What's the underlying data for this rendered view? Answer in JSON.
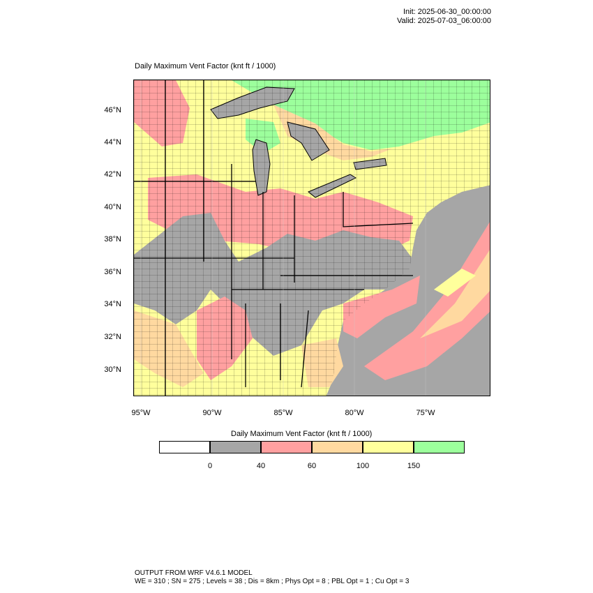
{
  "header": {
    "init": "Init: 2025-06-30_00:00:00",
    "valid": "Valid: 2025-07-03_06:00:00"
  },
  "plot": {
    "title": "Daily Maximum Vent Factor   (knt ft / 1000)"
  },
  "map": {
    "region": "Eastern United States",
    "lat_labels": [
      "46°N",
      "44°N",
      "42°N",
      "40°N",
      "38°N",
      "36°N",
      "34°N",
      "32°N",
      "30°N"
    ],
    "lon_labels": [
      "95°W",
      "90°W",
      "85°W",
      "80°W",
      "75°W"
    ],
    "lat_range": [
      28.5,
      47.5
    ],
    "lon_range": [
      -95.5,
      -70.5
    ]
  },
  "legend": {
    "title": "Daily Maximum Vent Factor  (knt ft / 1000)",
    "bins": [
      {
        "label": "< 0",
        "color": "#ffffff"
      },
      {
        "label": "0-40",
        "color": "#a6a6a6"
      },
      {
        "label": "40-60",
        "color": "#ffa0a0"
      },
      {
        "label": "60-100",
        "color": "#ffd9a0"
      },
      {
        "label": "100-150",
        "color": "#ffff9c"
      },
      {
        "label": "> 150",
        "color": "#9cff9c"
      }
    ],
    "ticks": [
      "0",
      "40",
      "60",
      "100",
      "150"
    ]
  },
  "footer": {
    "line1": "OUTPUT FROM WRF V4.6.1 MODEL",
    "line2": "WE = 310 ; SN = 275 ; Levels = 38 ; Dis = 8km ; Phys Opt = 8 ; PBL Opt = 1 ; Cu Opt = 3"
  }
}
